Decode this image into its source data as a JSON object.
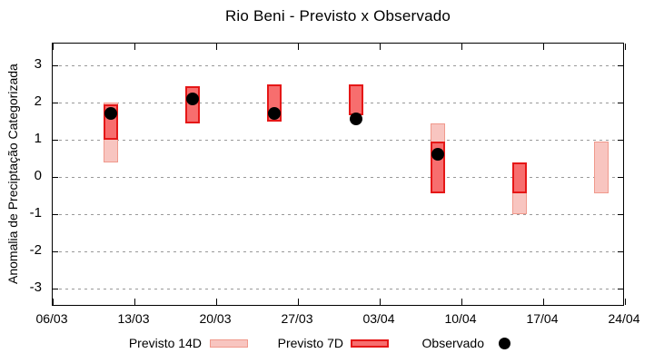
{
  "chart_data": {
    "type": "bar",
    "subtype": "range-bars-with-scatter-overlay",
    "title": "Rio Beni - Previsto x Observado",
    "xlabel": "",
    "ylabel": "Anomalia de Preciptação Categorizada",
    "ylim": [
      -3.6,
      3.6
    ],
    "yticks": [
      3,
      2,
      1,
      0,
      -1,
      -2,
      -3
    ],
    "xticks": [
      "06/03",
      "13/03",
      "20/03",
      "27/03",
      "03/04",
      "10/04",
      "17/04",
      "24/04"
    ],
    "xtick_interval_days": 7,
    "x_range_days": [
      0,
      49
    ],
    "grid": true,
    "legend_position": "bottom",
    "series": [
      {
        "name": "Previsto 14D",
        "role": "p14",
        "type": "range-bar",
        "data": [
          {
            "date": "11/03",
            "day": 5,
            "low": 0.4,
            "high": 2.0
          },
          {
            "date": "08/04",
            "day": 33,
            "low": -0.45,
            "high": 1.45
          },
          {
            "date": "15/04",
            "day": 40,
            "low": -1.0,
            "high": 0.4
          },
          {
            "date": "22/04",
            "day": 47,
            "low": -0.45,
            "high": 0.95
          }
        ]
      },
      {
        "name": "Previsto 7D",
        "role": "p7",
        "type": "range-bar",
        "data": [
          {
            "date": "11/03",
            "day": 5,
            "low": 1.0,
            "high": 1.95
          },
          {
            "date": "18/03",
            "day": 12,
            "low": 1.45,
            "high": 2.45
          },
          {
            "date": "25/03",
            "day": 19,
            "low": 1.5,
            "high": 2.5
          },
          {
            "date": "01/04",
            "day": 26,
            "low": 1.65,
            "high": 2.5
          },
          {
            "date": "08/04",
            "day": 33,
            "low": -0.45,
            "high": 0.95
          },
          {
            "date": "15/04",
            "day": 40,
            "low": -0.45,
            "high": 0.4
          }
        ]
      },
      {
        "name": "Observado",
        "role": "obs",
        "type": "scatter",
        "data": [
          {
            "date": "11/03",
            "day": 5,
            "value": 1.7
          },
          {
            "date": "18/03",
            "day": 12,
            "value": 2.1
          },
          {
            "date": "25/03",
            "day": 19,
            "value": 1.7
          },
          {
            "date": "01/04",
            "day": 26,
            "value": 1.55
          },
          {
            "date": "08/04",
            "day": 33,
            "value": 0.6
          }
        ]
      }
    ]
  },
  "legend": {
    "p14": "Previsto 14D",
    "p7": "Previsto 7D",
    "obs": "Observado"
  },
  "colors": {
    "p14_fill": "#F8C5C0",
    "p14_border": "#F0998C",
    "p7_fill": "#F76E6E",
    "p7_border": "#E51717",
    "observed": "#000000",
    "grid": "#999999",
    "axis": "#000000",
    "background": "#FFFFFF"
  }
}
